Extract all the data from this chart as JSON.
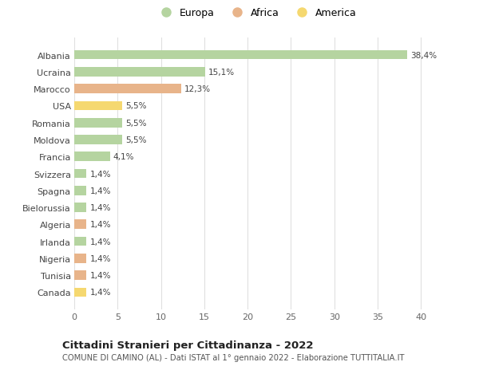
{
  "countries": [
    "Albania",
    "Ucraina",
    "Marocco",
    "USA",
    "Romania",
    "Moldova",
    "Francia",
    "Svizzera",
    "Spagna",
    "Bielorussia",
    "Algeria",
    "Irlanda",
    "Nigeria",
    "Tunisia",
    "Canada"
  ],
  "values": [
    38.4,
    15.1,
    12.3,
    5.5,
    5.5,
    5.5,
    4.1,
    1.4,
    1.4,
    1.4,
    1.4,
    1.4,
    1.4,
    1.4,
    1.4
  ],
  "bar_colors": [
    "#b5d4a0",
    "#b5d4a0",
    "#e8b48a",
    "#f5d870",
    "#b5d4a0",
    "#b5d4a0",
    "#b5d4a0",
    "#b5d4a0",
    "#b5d4a0",
    "#b5d4a0",
    "#e8b48a",
    "#b5d4a0",
    "#e8b48a",
    "#e8b48a",
    "#f5d870"
  ],
  "legend_colors": [
    "#b5d4a0",
    "#e8b48a",
    "#f5d870"
  ],
  "legend_labels": [
    "Europa",
    "Africa",
    "America"
  ],
  "xlim": [
    0,
    42
  ],
  "xticks": [
    0,
    5,
    10,
    15,
    20,
    25,
    30,
    35,
    40
  ],
  "title": "Cittadini Stranieri per Cittadinanza - 2022",
  "subtitle": "COMUNE DI CAMINO (AL) - Dati ISTAT al 1° gennaio 2022 - Elaborazione TUTTITALIA.IT",
  "bg_color": "#ffffff",
  "grid_color": "#e0e0e0",
  "label_values": [
    "38,4%",
    "15,1%",
    "12,3%",
    "5,5%",
    "5,5%",
    "5,5%",
    "4,1%",
    "1,4%",
    "1,4%",
    "1,4%",
    "1,4%",
    "1,4%",
    "1,4%",
    "1,4%",
    "1,4%"
  ]
}
